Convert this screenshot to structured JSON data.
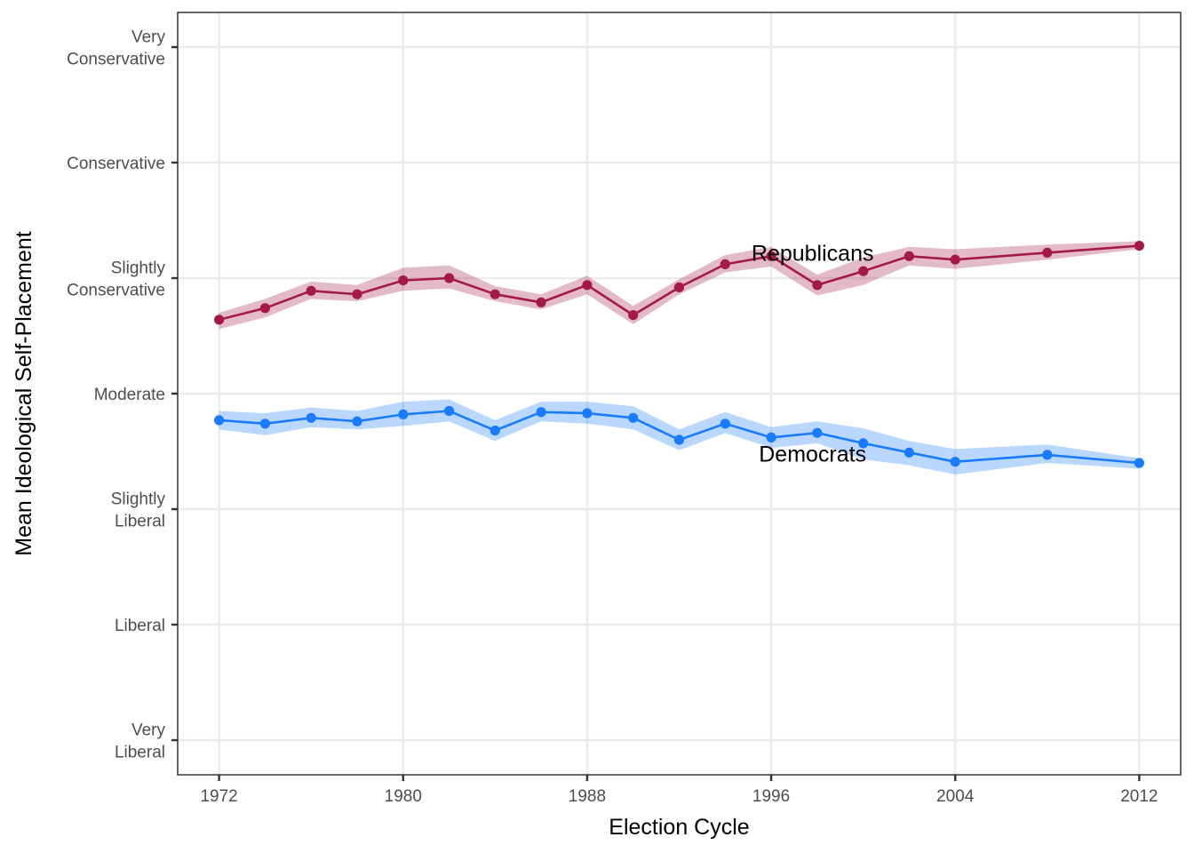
{
  "chart_data": {
    "type": "line",
    "title": "",
    "xlabel": "Election Cycle",
    "ylabel": "Mean Ideological Self-Placement",
    "xlim": [
      1970.2,
      2013.8
    ],
    "ylim": [
      0.7,
      7.3
    ],
    "grid": true,
    "x_ticks": [
      {
        "value": 1972,
        "label": "1972"
      },
      {
        "value": 1980,
        "label": "1980"
      },
      {
        "value": 1988,
        "label": "1988"
      },
      {
        "value": 1996,
        "label": "1996"
      },
      {
        "value": 2004,
        "label": "2004"
      },
      {
        "value": 2012,
        "label": "2012"
      }
    ],
    "y_ticks": [
      {
        "value": 1,
        "label": [
          "Very",
          "Liberal"
        ]
      },
      {
        "value": 2,
        "label": [
          "Liberal"
        ]
      },
      {
        "value": 3,
        "label": [
          "Slightly",
          "Liberal"
        ]
      },
      {
        "value": 4,
        "label": [
          "Moderate"
        ]
      },
      {
        "value": 5,
        "label": [
          "Slightly",
          "Conservative"
        ]
      },
      {
        "value": 6,
        "label": [
          "Conservative"
        ]
      },
      {
        "value": 7,
        "label": [
          "Very",
          "Conservative"
        ]
      }
    ],
    "x": [
      1972,
      1974,
      1976,
      1978,
      1980,
      1982,
      1984,
      1986,
      1988,
      1990,
      1992,
      1994,
      1996,
      1998,
      2000,
      2002,
      2004,
      2008,
      2012
    ],
    "series": [
      {
        "name": "Republicans",
        "color": "#a31a4a",
        "ribbon_color": "#a31a4a",
        "values": [
          4.64,
          4.74,
          4.89,
          4.86,
          4.98,
          5.0,
          4.86,
          4.79,
          4.94,
          4.68,
          4.92,
          5.12,
          5.19,
          4.94,
          5.06,
          5.19,
          5.16,
          5.22,
          5.28
        ],
        "lower": [
          4.56,
          4.66,
          4.82,
          4.8,
          4.89,
          4.91,
          4.8,
          4.73,
          4.86,
          4.6,
          4.86,
          5.05,
          5.1,
          4.85,
          4.94,
          5.11,
          5.08,
          5.16,
          5.25
        ],
        "upper": [
          4.7,
          4.82,
          4.97,
          4.94,
          5.09,
          5.11,
          4.93,
          4.86,
          5.02,
          4.76,
          4.99,
          5.2,
          5.27,
          5.03,
          5.18,
          5.27,
          5.25,
          5.29,
          5.32
        ],
        "label_position": [
          1997.8,
          5.22
        ]
      },
      {
        "name": "Democrats",
        "color": "#1a7bff",
        "ribbon_color": "#1a7bff",
        "values": [
          3.77,
          3.74,
          3.79,
          3.76,
          3.82,
          3.85,
          3.68,
          3.84,
          3.83,
          3.79,
          3.6,
          3.74,
          3.62,
          3.66,
          3.57,
          3.49,
          3.41,
          3.47,
          3.4
        ],
        "lower": [
          3.69,
          3.64,
          3.71,
          3.69,
          3.72,
          3.76,
          3.59,
          3.76,
          3.74,
          3.69,
          3.51,
          3.66,
          3.53,
          3.57,
          3.43,
          3.38,
          3.3,
          3.4,
          3.35
        ],
        "upper": [
          3.85,
          3.83,
          3.88,
          3.85,
          3.93,
          3.95,
          3.77,
          3.93,
          3.93,
          3.89,
          3.69,
          3.84,
          3.71,
          3.76,
          3.7,
          3.59,
          3.52,
          3.56,
          3.44
        ],
        "label_position": [
          1997.8,
          3.48
        ]
      }
    ]
  }
}
